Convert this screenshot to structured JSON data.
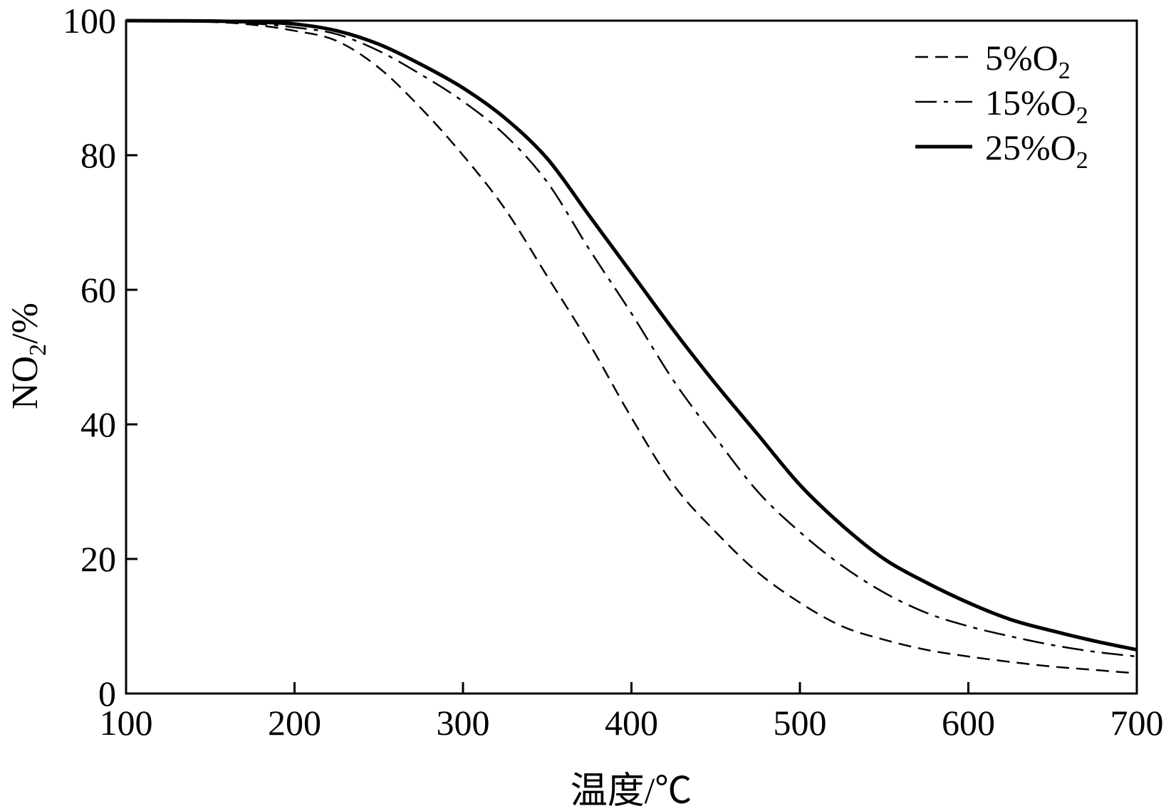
{
  "chart_data": {
    "type": "line",
    "xlabel": "温度/℃",
    "ylabel": {
      "main": "NO",
      "sub": "2",
      "rest": "/%"
    },
    "xlim": [
      100,
      700
    ],
    "ylim": [
      0,
      100
    ],
    "xticks": [
      100,
      200,
      300,
      400,
      500,
      600,
      700
    ],
    "yticks": [
      0,
      20,
      40,
      60,
      80,
      100
    ],
    "grid": false,
    "legend_position": "top-right",
    "x": [
      100,
      150,
      175,
      200,
      225,
      250,
      275,
      300,
      325,
      350,
      375,
      400,
      425,
      450,
      475,
      500,
      525,
      550,
      575,
      600,
      625,
      650,
      675,
      700
    ],
    "series": [
      {
        "name": "5%O2",
        "label_main": "5%O",
        "label_sub": "2",
        "style": "dashed",
        "values": [
          100,
          99.8,
          99.4,
          98.5,
          97,
          93,
          87,
          80,
          72,
          62,
          52,
          41,
          31,
          24,
          18,
          13.5,
          10,
          8,
          6.5,
          5.5,
          4.7,
          4,
          3.5,
          3
        ]
      },
      {
        "name": "15%O2",
        "label_main": "15%O",
        "label_sub": "2",
        "style": "dashdot",
        "values": [
          100,
          99.9,
          99.6,
          99,
          98,
          95.5,
          92,
          88,
          83,
          76,
          66,
          56.5,
          46.5,
          38,
          30,
          24,
          19,
          15,
          12,
          10,
          8.5,
          7.2,
          6.2,
          5.5
        ]
      },
      {
        "name": "25%O2",
        "label_main": "25%O",
        "label_sub": "2",
        "style": "solid",
        "values": [
          100,
          99.95,
          99.8,
          99.5,
          98.5,
          96.5,
          93.5,
          90,
          85.5,
          79.5,
          71,
          62.5,
          54,
          46,
          38.5,
          31,
          25,
          20,
          16.5,
          13.5,
          11,
          9.3,
          7.8,
          6.5
        ]
      }
    ]
  }
}
